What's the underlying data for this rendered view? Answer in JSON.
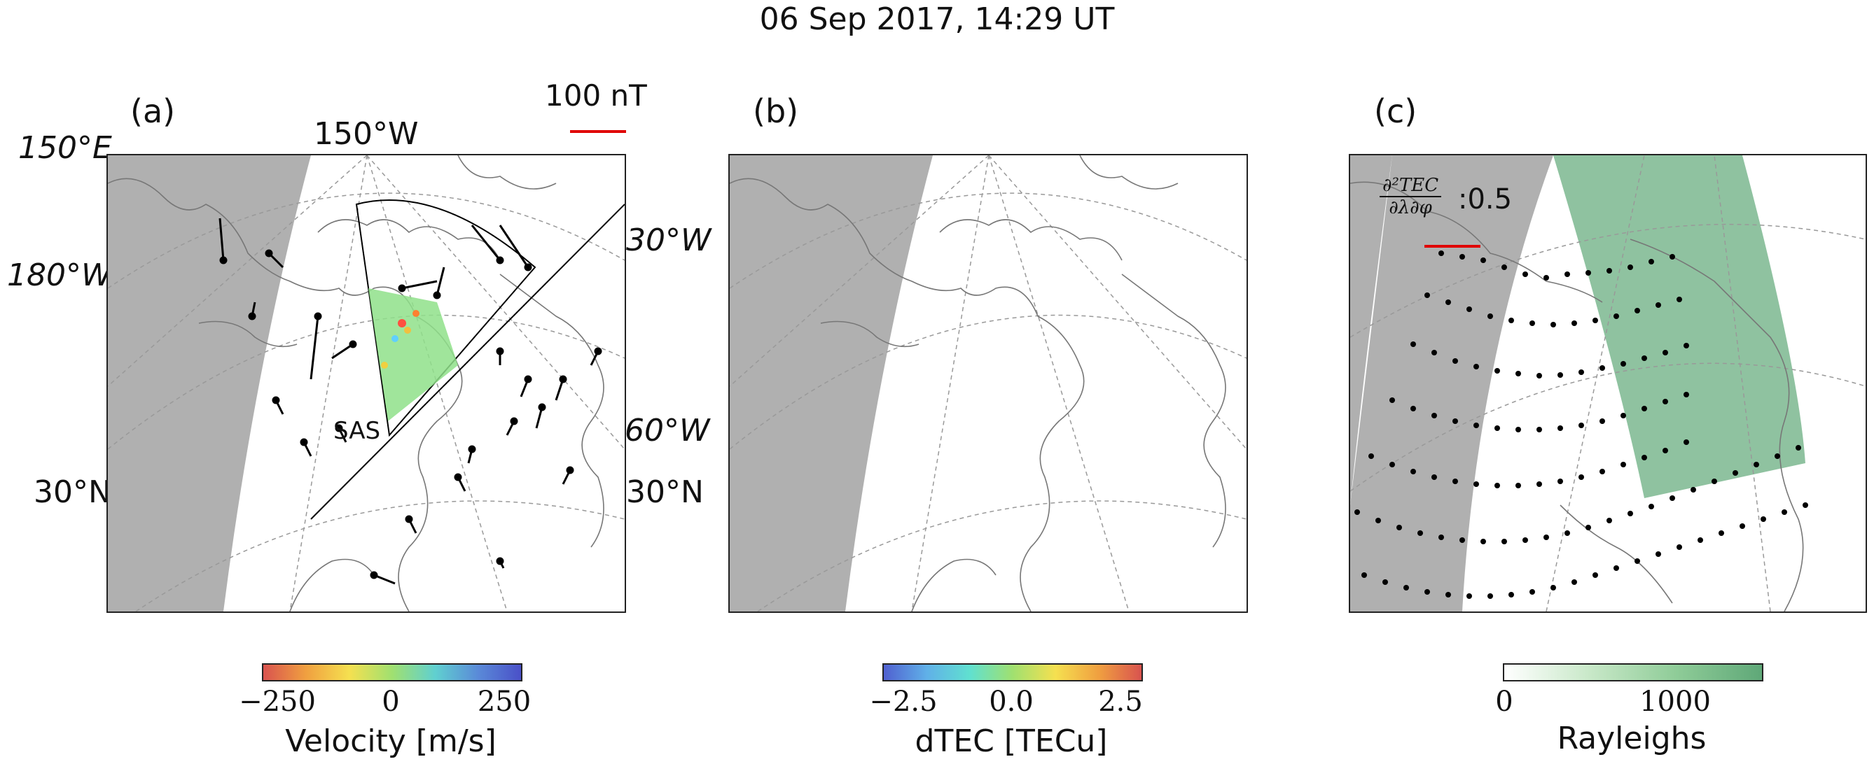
{
  "title": "06 Sep 2017, 14:29 UT",
  "panels": [
    {
      "label": "(a)"
    },
    {
      "label": "(b)"
    },
    {
      "label": "(c)"
    }
  ],
  "panel_a": {
    "scale_label": "100 nT",
    "radar_label": "SAS",
    "coords": {
      "lon_150e": "150°E",
      "lon_150w": "150°W",
      "lon_180w": "180°W",
      "lon_30w": "30°W",
      "lon_60w": "60°W",
      "lat_30n_left": "30°N",
      "lat_30n_right": "30°N"
    }
  },
  "panel_c": {
    "formula_numerator": "∂²TEC",
    "formula_denominator": "∂λ∂φ",
    "formula_value": ":0.5"
  },
  "colorbars": [
    {
      "label": "Velocity [m/s]",
      "ticks": [
        "−250",
        "0",
        "250"
      ],
      "colormap": "jet_r"
    },
    {
      "label": "dTEC [TECu]",
      "ticks": [
        "−2.5",
        "0.0",
        "2.5"
      ],
      "colormap": "jet"
    },
    {
      "label": "Rayleighs",
      "ticks": [
        "0",
        "1000"
      ],
      "colormap": "greens"
    }
  ],
  "colors": {
    "night_shade": "#b0b0b0",
    "coastline": "#777777",
    "vector": "#000000",
    "scale_arrow": "#e00000",
    "aurora_green": "#5fa878"
  }
}
